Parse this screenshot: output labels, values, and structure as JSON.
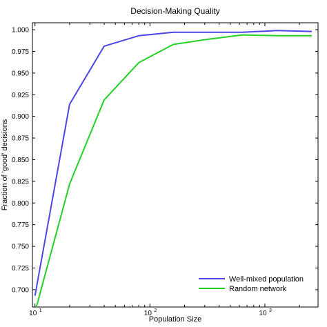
{
  "chart_data": {
    "type": "line",
    "title": "Decision-Making Quality",
    "xlabel": "Population Size",
    "ylabel": "Fraction of 'good' decisions",
    "xscale": "log",
    "xlim": [
      9.5,
      2900
    ],
    "ylim": [
      0.68,
      1.008
    ],
    "xticks": [
      {
        "value": 10,
        "base": "10",
        "exp": "1"
      },
      {
        "value": 100,
        "base": "10",
        "exp": "2"
      },
      {
        "value": 1000,
        "base": "10",
        "exp": "3"
      }
    ],
    "yticks": [
      "0.700",
      "0.725",
      "0.750",
      "0.775",
      "0.800",
      "0.825",
      "0.850",
      "0.875",
      "0.900",
      "0.925",
      "0.950",
      "0.975",
      "1.000"
    ],
    "grid": false,
    "legend_position": "bottom-right",
    "series": [
      {
        "name": "Well-mixed population",
        "color": "#4b45e6",
        "x": [
          10,
          20,
          40,
          80,
          160,
          320,
          640,
          1280,
          2560
        ],
        "y": [
          0.693,
          0.914,
          0.981,
          0.993,
          0.997,
          0.997,
          0.997,
          0.999,
          0.998
        ]
      },
      {
        "name": "Random network",
        "color": "#22d124",
        "x": [
          10,
          20,
          40,
          80,
          160,
          320,
          640,
          1280,
          2560
        ],
        "y": [
          0.674,
          0.822,
          0.919,
          0.962,
          0.983,
          0.989,
          0.994,
          0.993,
          0.993
        ]
      }
    ]
  }
}
